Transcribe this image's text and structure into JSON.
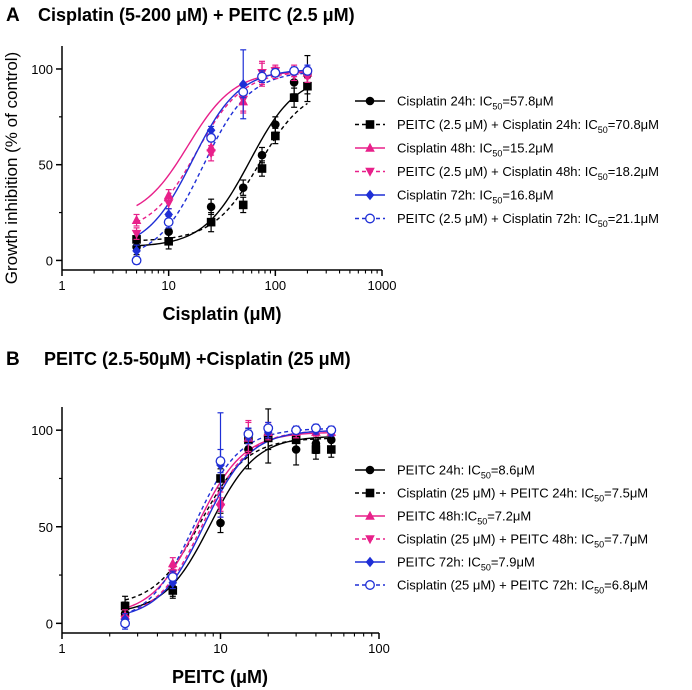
{
  "chart_data": [
    {
      "panel": "A",
      "type": "scatter",
      "title": "Cisplatin (5-200 μM) + PEITC (2.5 μM)",
      "xlabel": "Cisplatin (μM)",
      "ylabel": "Growth inhibition (% of control)",
      "xscale": "log",
      "xlim": [
        1,
        1000
      ],
      "ylim": [
        -5,
        112
      ],
      "xticks": [
        1,
        10,
        100,
        1000
      ],
      "xtick_labels": [
        "1",
        "10",
        "100",
        "1000"
      ],
      "yticks": [
        0,
        50,
        100
      ],
      "ytick_labels": [
        "0",
        "50",
        "100"
      ],
      "legend_position": "right",
      "series": [
        {
          "name": "Cisplatin 24h",
          "legend_prefix": "Cisplatin 24h:  IC",
          "ic_label": "=57.8μM",
          "ic50": 57.8,
          "color": "#000000",
          "marker": "circle",
          "dash": false,
          "x": [
            5,
            10,
            25,
            50,
            75,
            100,
            150,
            200
          ],
          "y": [
            7,
            15,
            28,
            38,
            55,
            71,
            93,
            97
          ],
          "err": [
            4,
            6,
            4,
            4,
            4,
            4,
            6,
            10
          ]
        },
        {
          "name": "PEITC (2.5 μM) + Cisplatin 24h",
          "legend_prefix": "PEITC (2.5 μM) + Cisplatin 24h: IC",
          "ic_label": "=70.8μM",
          "ic50": 70.8,
          "color": "#000000",
          "marker": "square",
          "dash": true,
          "x": [
            5,
            10,
            25,
            50,
            75,
            100,
            150,
            200
          ],
          "y": [
            11,
            10,
            20,
            29,
            48,
            65,
            85,
            91
          ],
          "err": [
            4,
            4,
            5,
            4,
            4,
            4,
            5,
            8
          ]
        },
        {
          "name": "Cisplatin 48h",
          "legend_prefix": "Cisplatin 48h: IC",
          "ic_label": "=15.2μM",
          "ic50": 15.2,
          "color": "#e8208a",
          "marker": "triangle-up",
          "dash": false,
          "x": [
            5,
            10,
            25,
            50,
            75,
            100,
            150,
            200
          ],
          "y": [
            21,
            34,
            59,
            83,
            97,
            98,
            99,
            98
          ],
          "err": [
            3,
            3,
            4,
            6,
            6,
            3,
            3,
            3
          ]
        },
        {
          "name": "PEITC (2.5 μM) + Cisplatin 48h",
          "legend_prefix": "PEITC (2.5 μM) + Cisplatin 48h: IC",
          "ic_label": "=18.2μM",
          "ic50": 18.2,
          "color": "#e8208a",
          "marker": "triangle-down",
          "dash": true,
          "x": [
            5,
            10,
            25,
            50,
            75,
            100,
            150,
            200
          ],
          "y": [
            14,
            30,
            56,
            84,
            98,
            99,
            97,
            96
          ],
          "err": [
            3,
            3,
            4,
            6,
            6,
            3,
            3,
            3
          ]
        },
        {
          "name": "Cisplatin 72h",
          "legend_prefix": "Cisplatin 72h: IC",
          "ic_label": "=16.8μM",
          "ic50": 16.8,
          "color": "#1f2fd6",
          "marker": "diamond",
          "dash": false,
          "x": [
            5,
            10,
            25,
            50,
            75,
            100,
            150,
            200
          ],
          "y": [
            5,
            24,
            68,
            92,
            96,
            98,
            99,
            100
          ],
          "err": [
            3,
            3,
            2,
            18,
            3,
            2,
            2,
            2
          ]
        },
        {
          "name": "PEITC (2.5 μM) + Cisplatin 72h",
          "legend_prefix": "PEITC (2.5 μM) + Cisplatin 72h: IC",
          "ic_label": "=21.1μM",
          "ic50": 21.1,
          "color": "#1f2fd6",
          "marker": "circle-open",
          "dash": true,
          "x": [
            5,
            10,
            25,
            50,
            75,
            100,
            150,
            200
          ],
          "y": [
            0,
            20,
            64,
            88,
            96,
            98,
            99,
            99
          ],
          "err": [
            2,
            3,
            2,
            3,
            3,
            2,
            2,
            2
          ]
        }
      ]
    },
    {
      "panel": "B",
      "type": "scatter",
      "title": "PEITC (2.5-50μM) +Cisplatin (25 μM)",
      "xlabel": "PEITC (μM)",
      "ylabel": "",
      "xscale": "log",
      "xlim": [
        1,
        100
      ],
      "ylim": [
        -5,
        112
      ],
      "xticks": [
        1,
        10,
        100
      ],
      "xtick_labels": [
        "1",
        "10",
        "100"
      ],
      "yticks": [
        0,
        50,
        100
      ],
      "ytick_labels": [
        "0",
        "50",
        "100"
      ],
      "legend_position": "right",
      "series": [
        {
          "name": "PEITC 24h",
          "legend_prefix": "PEITC 24h: IC",
          "ic_label": "=8.6μM",
          "ic50": 8.6,
          "color": "#000000",
          "marker": "circle",
          "dash": false,
          "x": [
            2.5,
            5,
            10,
            15,
            20,
            30,
            40,
            50
          ],
          "y": [
            5,
            18,
            52,
            90,
            97,
            90,
            93,
            95
          ],
          "err": [
            6,
            4,
            5,
            10,
            14,
            8,
            5,
            4
          ]
        },
        {
          "name": "Cisplatin (25 μM) + PEITC 24h",
          "legend_prefix": "Cisplatin (25 μM) + PEITC 24h: IC",
          "ic_label": "=7.5μM",
          "ic50": 7.5,
          "color": "#000000",
          "marker": "square",
          "dash": true,
          "x": [
            2.5,
            5,
            10,
            15,
            20,
            30,
            40,
            50
          ],
          "y": [
            9,
            17,
            75,
            95,
            96,
            95,
            90,
            90
          ],
          "err": [
            5,
            4,
            5,
            6,
            6,
            6,
            5,
            4
          ]
        },
        {
          "name": "PEITC 48h",
          "legend_prefix": "PEITC 48h:IC",
          "ic_label": "=7.2μM",
          "ic50": 7.2,
          "color": "#e8208a",
          "marker": "triangle-up",
          "dash": false,
          "x": [
            2.5,
            5,
            10,
            15,
            20,
            30,
            40,
            50
          ],
          "y": [
            4,
            31,
            63,
            96,
            99,
            99,
            99,
            99
          ],
          "err": [
            3,
            3,
            5,
            8,
            4,
            3,
            2,
            2
          ]
        },
        {
          "name": "Cisplatin (25 μM) + PEITC 48h",
          "legend_prefix": "Cisplatin (25 μM) + PEITC 48h: IC",
          "ic_label": "=7.7μM",
          "ic50": 7.7,
          "color": "#e8208a",
          "marker": "triangle-down",
          "dash": true,
          "x": [
            2.5,
            5,
            10,
            15,
            20,
            30,
            40,
            50
          ],
          "y": [
            2,
            26,
            60,
            97,
            100,
            99,
            99,
            99
          ],
          "err": [
            3,
            3,
            5,
            8,
            4,
            3,
            2,
            2
          ]
        },
        {
          "name": "PEITC 72h",
          "legend_prefix": "PEITC 72h: IC",
          "ic_label": "=7.9μM",
          "ic50": 7.9,
          "color": "#1f2fd6",
          "marker": "diamond",
          "dash": false,
          "x": [
            2.5,
            5,
            10,
            15,
            20,
            30,
            40,
            50
          ],
          "y": [
            2,
            21,
            82,
            97,
            99,
            100,
            100,
            99
          ],
          "err": [
            3,
            3,
            27,
            4,
            3,
            2,
            2,
            2
          ]
        },
        {
          "name": "Cisplatin (25 μM) + PEITC 72h",
          "legend_prefix": "Cisplatin (25 μM) + PEITC 72h: IC",
          "ic_label": "=6.8μM",
          "ic50": 6.8,
          "color": "#1f2fd6",
          "marker": "circle-open",
          "dash": true,
          "x": [
            2.5,
            5,
            10,
            15,
            20,
            30,
            40,
            50
          ],
          "y": [
            0,
            24,
            84,
            98,
            101,
            100,
            101,
            100
          ],
          "err": [
            3,
            3,
            6,
            3,
            3,
            2,
            2,
            2
          ]
        }
      ]
    }
  ]
}
